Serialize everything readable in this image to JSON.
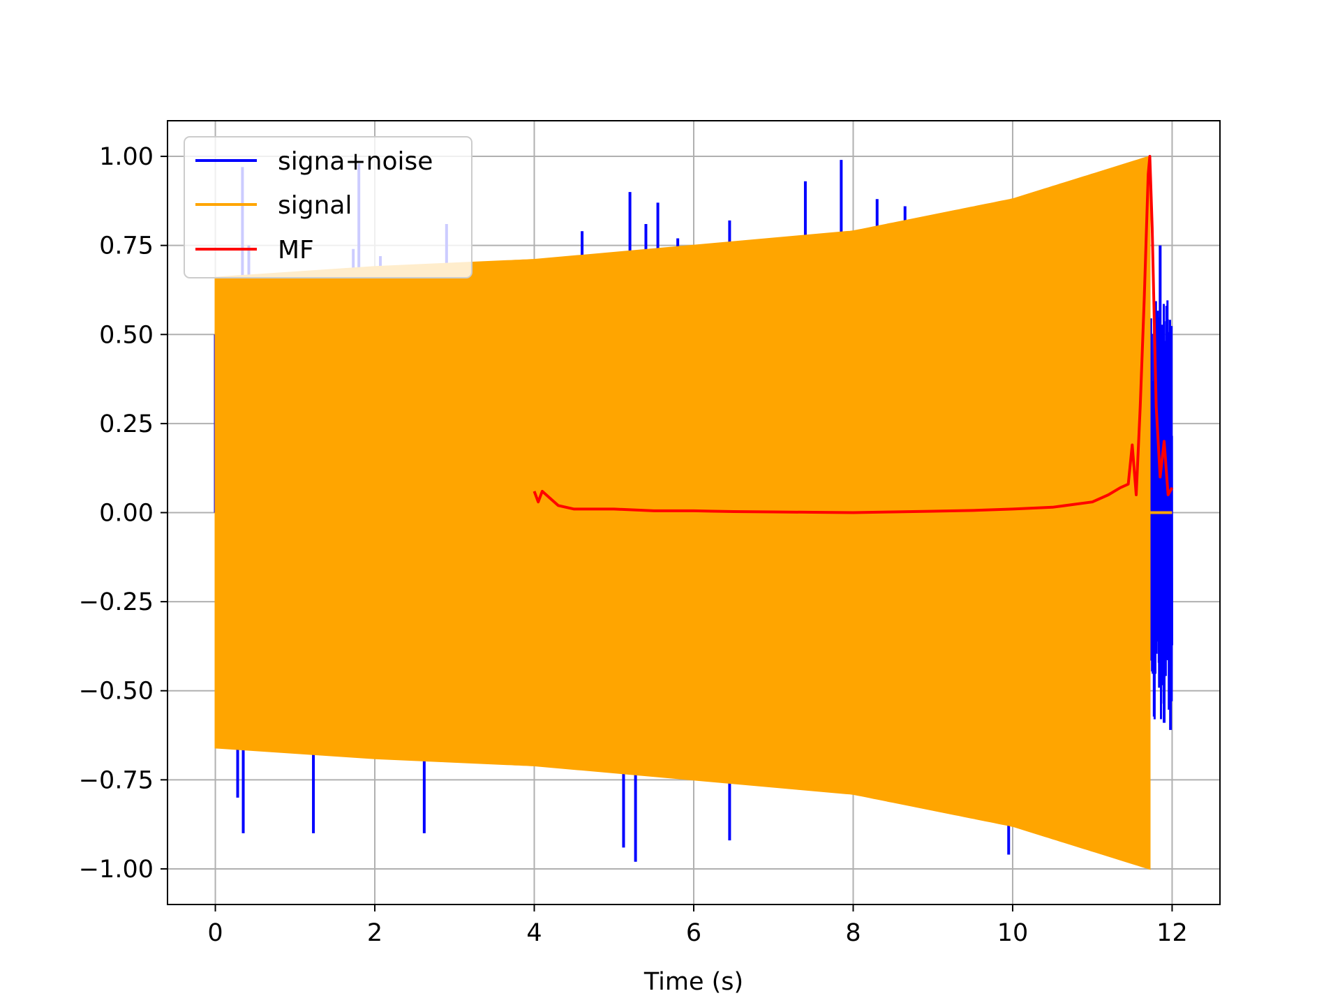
{
  "chart_data": {
    "type": "line",
    "title": "",
    "xlabel": "Time (s)",
    "ylabel": "",
    "xlim": [
      -0.6,
      12.6
    ],
    "ylim": [
      -1.1,
      1.1
    ],
    "grid": true,
    "legend_position": "upper-left",
    "xticks": [
      0,
      2,
      4,
      6,
      8,
      10,
      12
    ],
    "xtick_labels": [
      "0",
      "2",
      "4",
      "6",
      "8",
      "10",
      "12"
    ],
    "yticks": [
      1.0,
      0.75,
      0.5,
      0.25,
      0.0,
      -0.25,
      -0.5,
      -0.75,
      -1.0
    ],
    "ytick_labels": [
      "1.00",
      "0.75",
      "0.50",
      "0.25",
      "0.00",
      "−0.25",
      "−0.50",
      "−0.75",
      "−1.00"
    ],
    "series": [
      {
        "name": "signa+noise",
        "color": "#0000ff",
        "x_range": [
          0,
          12
        ],
        "envelope_note": "noisy chirp; envelope follows signal with sparse outlier spikes",
        "spikes": [
          {
            "x": 0.0,
            "y": 0.5
          },
          {
            "x": 0.34,
            "y": 0.97
          },
          {
            "x": 0.42,
            "y": 0.75
          },
          {
            "x": 1.73,
            "y": 0.74
          },
          {
            "x": 1.8,
            "y": 0.98
          },
          {
            "x": 2.07,
            "y": 0.72
          },
          {
            "x": 2.9,
            "y": 0.81
          },
          {
            "x": 4.6,
            "y": 0.79
          },
          {
            "x": 5.2,
            "y": 0.9
          },
          {
            "x": 5.4,
            "y": 0.81
          },
          {
            "x": 5.55,
            "y": 0.87
          },
          {
            "x": 5.8,
            "y": 0.77
          },
          {
            "x": 6.45,
            "y": 0.82
          },
          {
            "x": 7.4,
            "y": 0.93
          },
          {
            "x": 7.85,
            "y": 0.99
          },
          {
            "x": 8.3,
            "y": 0.88
          },
          {
            "x": 8.65,
            "y": 0.86
          },
          {
            "x": 11.85,
            "y": 0.75
          },
          {
            "x": 0.28,
            "y": -0.8
          },
          {
            "x": 0.35,
            "y": -0.9
          },
          {
            "x": 1.23,
            "y": -0.9
          },
          {
            "x": 2.62,
            "y": -0.9
          },
          {
            "x": 5.12,
            "y": -0.94
          },
          {
            "x": 5.27,
            "y": -0.98
          },
          {
            "x": 6.45,
            "y": -0.92
          },
          {
            "x": 9.95,
            "y": -0.96
          },
          {
            "x": 11.9,
            "y": -0.59
          },
          {
            "x": 11.98,
            "y": -0.61
          }
        ]
      },
      {
        "name": "signal",
        "color": "#ffa500",
        "x_range": [
          0,
          11.72
        ],
        "amplitude_start": 0.66,
        "amplitude_end": 1.0,
        "amplitude_points": [
          [
            0,
            0.66
          ],
          [
            2,
            0.69
          ],
          [
            4,
            0.71
          ],
          [
            6,
            0.75
          ],
          [
            8,
            0.79
          ],
          [
            10,
            0.88
          ],
          [
            11.72,
            1.0
          ]
        ],
        "after_end_value": 0.0
      },
      {
        "name": "MF",
        "color": "#ff0000",
        "x": [
          4.0,
          4.05,
          4.1,
          4.2,
          4.3,
          4.5,
          5.0,
          5.5,
          6.0,
          6.5,
          7.0,
          7.5,
          8.0,
          8.5,
          9.0,
          9.5,
          10.0,
          10.5,
          11.0,
          11.2,
          11.35,
          11.45,
          11.5,
          11.55,
          11.6,
          11.65,
          11.7,
          11.72,
          11.75,
          11.8,
          11.85,
          11.9,
          11.95,
          12.0
        ],
        "y": [
          0.06,
          0.03,
          0.06,
          0.04,
          0.02,
          0.01,
          0.01,
          0.005,
          0.005,
          0.003,
          0.002,
          0.001,
          0.0,
          0.002,
          0.004,
          0.006,
          0.01,
          0.015,
          0.03,
          0.05,
          0.07,
          0.08,
          0.19,
          0.05,
          0.3,
          0.6,
          0.95,
          1.0,
          0.8,
          0.3,
          0.1,
          0.2,
          0.05,
          0.07
        ]
      }
    ]
  }
}
